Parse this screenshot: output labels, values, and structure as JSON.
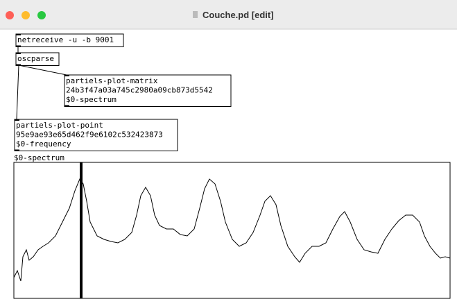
{
  "window": {
    "title": "Couche.pd [edit]"
  },
  "objects": [
    {
      "lines": [
        "netreceive -u -b 9001"
      ]
    },
    {
      "lines": [
        "oscparse"
      ]
    },
    {
      "lines": [
        "partiels-plot-matrix",
        "24b3f47a03a745c2980a09cb873d5542",
        "$0-spectrum"
      ]
    },
    {
      "lines": [
        "partiels-plot-point",
        "95e9ae93e65d462f9e6102c532423873",
        "$0-frequency"
      ]
    }
  ],
  "array": {
    "label": "$0-spectrum"
  }
}
